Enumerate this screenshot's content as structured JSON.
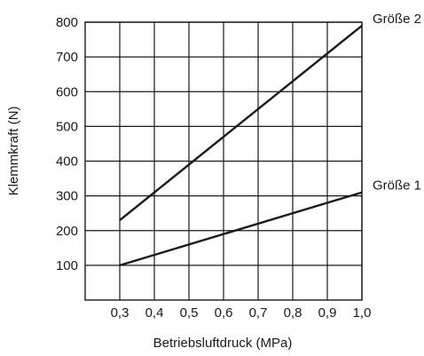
{
  "chart_data": {
    "type": "line",
    "xlabel": "Betriebsluftdruck (MPa)",
    "ylabel": "Klemmkraft (N)",
    "xlim": [
      0.2,
      1.0
    ],
    "ylim": [
      0,
      800
    ],
    "grid": true,
    "x_ticks": [
      0.3,
      0.4,
      0.5,
      0.6,
      0.7,
      0.8,
      0.9,
      1.0
    ],
    "x_tick_labels": [
      "0,3",
      "0,4",
      "0,5",
      "0,6",
      "0,7",
      "0,8",
      "0,9",
      "1,0"
    ],
    "y_ticks": [
      100,
      200,
      300,
      400,
      500,
      600,
      700,
      800
    ],
    "y_tick_labels": [
      "100",
      "200",
      "300",
      "400",
      "500",
      "600",
      "700",
      "800"
    ],
    "series": [
      {
        "name": "Größe 2",
        "x": [
          0.3,
          1.0
        ],
        "y": [
          230,
          790
        ]
      },
      {
        "name": "Größe 1",
        "x": [
          0.3,
          1.0
        ],
        "y": [
          100,
          310
        ]
      }
    ],
    "line_color": "#1a1a1a",
    "grid_color": "#1a1a1a"
  }
}
